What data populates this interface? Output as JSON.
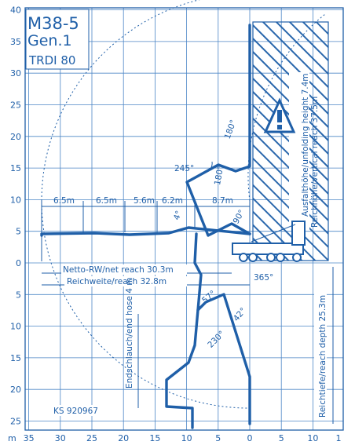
{
  "title": {
    "model": "M38-5",
    "generation": "Gen.1",
    "variant": "TRDI 80"
  },
  "axis": {
    "unit": "m",
    "y_up": [
      "40",
      "35",
      "30",
      "25",
      "20",
      "15",
      "10",
      "5",
      "0"
    ],
    "y_down": [
      "5",
      "10",
      "15",
      "20",
      "25"
    ],
    "x": [
      "35",
      "30",
      "25",
      "20",
      "15",
      "10",
      "5",
      "0",
      "5",
      "10",
      "1"
    ]
  },
  "segments": [
    "6.5m",
    "6.5m",
    "5.6m",
    "6.2m",
    "8.7m"
  ],
  "reach": {
    "net": "Netto-RW/net reach 30.3m",
    "total": "Reichweite/reach 32.8m"
  },
  "vertical_labels": {
    "unfolding": "Ausfalthöhe/unfolding height 7.4m",
    "vertical": "Reichhöhe/vertical reach 37.5m",
    "depth": "Reichtiefe/reach depth 25.3m",
    "end_hose": "Endschlauch/end hose 4 m"
  },
  "angles": {
    "a1": "180°",
    "a2": "245°",
    "a3": "180°",
    "a4": "90°",
    "a5": "4°",
    "slew": "365°",
    "a6": "57°",
    "a7": "42°",
    "a8": "230°"
  },
  "ks": "KS 920967",
  "warning_symbol": "warning-triangle-icon",
  "colors": {
    "line": "#1f5fa8",
    "grid": "#4c86c6",
    "background": "#ffffff"
  }
}
